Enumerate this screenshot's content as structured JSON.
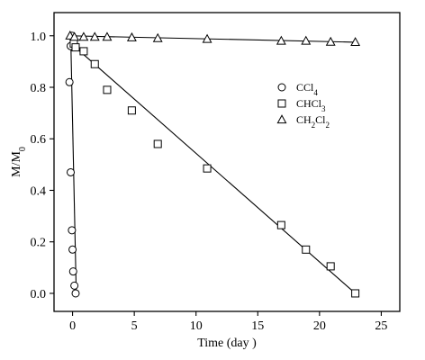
{
  "chart_data": {
    "type": "scatter",
    "xlabel": "Time (day )",
    "ylabel": "M/M0",
    "xlim": [
      -1.5,
      26.5
    ],
    "ylim": [
      -0.07,
      1.09
    ],
    "x_ticks": [
      0,
      5,
      10,
      15,
      20,
      25
    ],
    "x_tick_labels": [
      "0",
      "5",
      "10",
      "15",
      "20",
      "25"
    ],
    "y_ticks": [
      0.0,
      0.2,
      0.4,
      0.6,
      0.8,
      1.0
    ],
    "y_tick_labels": [
      "0.0",
      "0.2",
      "0.4",
      "0.6",
      "0.8",
      "1.0"
    ],
    "grid": false,
    "legend_position": "right",
    "series": [
      {
        "name": "CCl4",
        "marker": "circle",
        "x": [
          -0.05,
          -0.15,
          -0.25,
          -0.15,
          -0.05,
          0.0,
          0.05,
          0.15,
          0.25
        ],
        "y": [
          1.0,
          0.96,
          0.82,
          0.47,
          0.245,
          0.17,
          0.085,
          0.03,
          0.0
        ],
        "fit": [
          [
            -0.15,
            1.0
          ],
          [
            0.3,
            0.0
          ]
        ]
      },
      {
        "name": "CHCl3",
        "marker": "square",
        "x": [
          0.1,
          0.25,
          0.9,
          1.8,
          2.8,
          4.8,
          6.9,
          10.9,
          16.9,
          18.9,
          20.9,
          22.9
        ],
        "y": [
          0.97,
          0.955,
          0.94,
          0.89,
          0.79,
          0.71,
          0.58,
          0.485,
          0.265,
          0.17,
          0.105,
          0.0
        ],
        "fit": [
          [
            0.0,
            0.965
          ],
          [
            22.9,
            0.0
          ]
        ]
      },
      {
        "name": "CH2Cl2",
        "marker": "triangle",
        "x": [
          -0.2,
          0.15,
          0.9,
          1.8,
          2.8,
          4.8,
          6.9,
          10.9,
          16.9,
          18.9,
          20.9,
          22.9
        ],
        "y": [
          1.0,
          0.995,
          0.995,
          0.995,
          0.995,
          0.993,
          0.99,
          0.987,
          0.98,
          0.98,
          0.976,
          0.975
        ],
        "fit": [
          [
            -0.2,
            1.0
          ],
          [
            22.9,
            0.975
          ]
        ]
      }
    ]
  }
}
